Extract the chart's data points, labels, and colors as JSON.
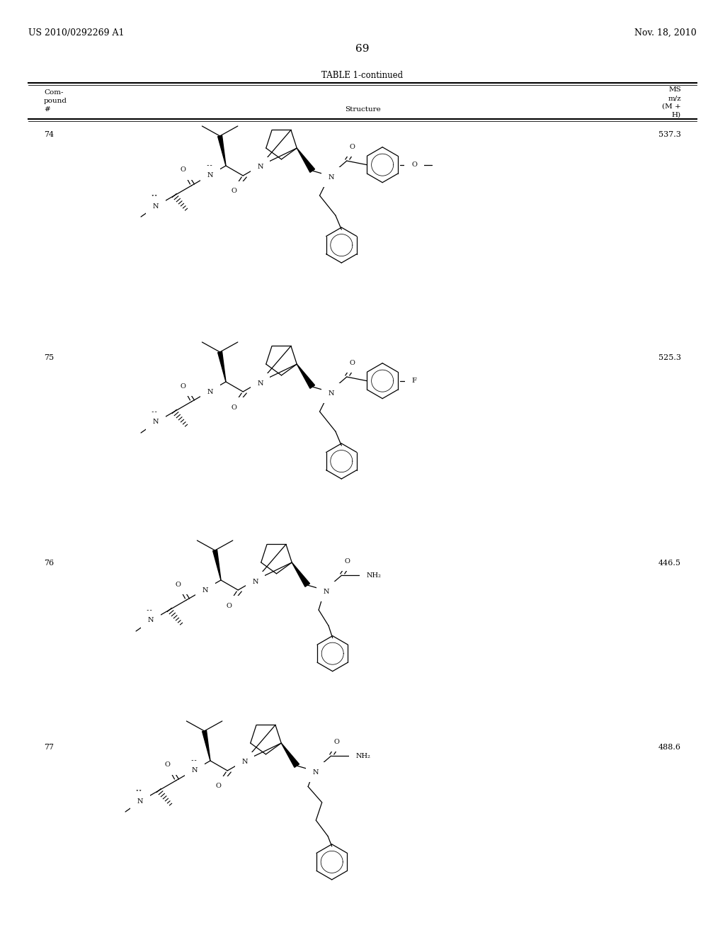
{
  "bg_color": "#ffffff",
  "page_width": 10.24,
  "page_height": 13.2,
  "header_left": "US 2010/0292269 A1",
  "header_right": "Nov. 18, 2010",
  "page_number": "69",
  "table_title": "TABLE 1-continued",
  "compounds": [
    {
      "id": "74",
      "ms": "537.3"
    },
    {
      "id": "75",
      "ms": "525.3"
    },
    {
      "id": "76",
      "ms": "446.5"
    },
    {
      "id": "77",
      "ms": "488.6"
    }
  ]
}
